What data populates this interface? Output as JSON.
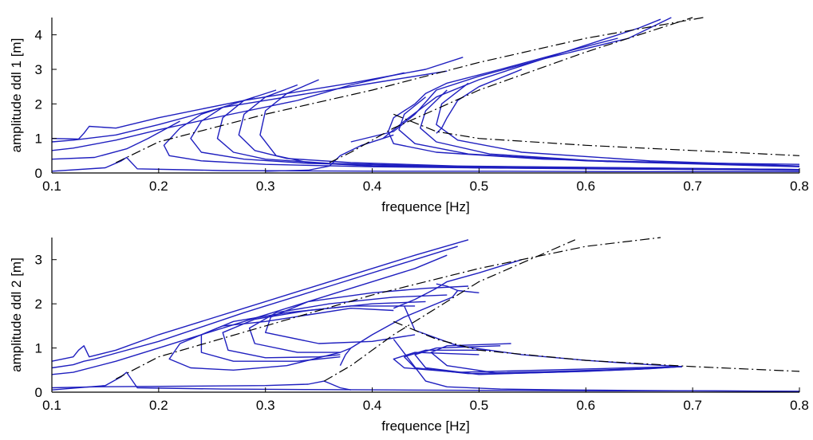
{
  "colors": {
    "curve": "#1f1fbf",
    "backbone": "#000000",
    "axis": "#000000",
    "background": "#ffffff"
  },
  "chart_data": [
    {
      "type": "line",
      "title": "",
      "xlabel": "frequence [Hz]",
      "ylabel": "amplitude ddl 1 [m]",
      "xlim": [
        0.1,
        0.8
      ],
      "ylim": [
        0,
        4.5
      ],
      "xticks": [
        "0.1",
        "0.2",
        "0.3",
        "0.4",
        "0.5",
        "0.6",
        "0.7",
        "0.8"
      ],
      "yticks": [
        "0",
        "1",
        "2",
        "3",
        "4"
      ],
      "grid": false,
      "legend": "none",
      "series": [
        {
          "style": "solid",
          "x": [
            0.1,
            0.125,
            0.13,
            0.135,
            0.16,
            0.2,
            0.28,
            0.38,
            0.45,
            0.485
          ],
          "y": [
            1.0,
            0.98,
            1.15,
            1.35,
            1.3,
            1.6,
            2.1,
            2.6,
            3.0,
            3.35
          ]
        },
        {
          "style": "solid",
          "x": [
            0.1,
            0.12,
            0.16,
            0.2,
            0.26,
            0.34,
            0.42,
            0.47
          ],
          "y": [
            0.9,
            0.95,
            1.1,
            1.4,
            1.9,
            2.3,
            2.7,
            2.95
          ]
        },
        {
          "style": "solid",
          "x": [
            0.1,
            0.12,
            0.16,
            0.2,
            0.26,
            0.33,
            0.38,
            0.43
          ],
          "y": [
            0.65,
            0.72,
            0.95,
            1.25,
            1.65,
            2.1,
            2.55,
            2.9
          ]
        },
        {
          "style": "solid",
          "x": [
            0.1,
            0.14,
            0.17,
            0.19,
            0.22
          ],
          "y": [
            0.4,
            0.45,
            0.7,
            1.0,
            1.5
          ]
        },
        {
          "style": "solid",
          "x": [
            0.1,
            0.15,
            0.165,
            0.17,
            0.18,
            0.26,
            0.34,
            0.42,
            0.52,
            0.62,
            0.72,
            0.8
          ],
          "y": [
            0.05,
            0.15,
            0.35,
            0.45,
            0.12,
            0.07,
            0.06,
            0.05,
            0.05,
            0.04,
            0.04,
            0.04
          ]
        },
        {
          "style": "solid",
          "x": [
            0.27,
            0.24,
            0.22,
            0.205,
            0.21,
            0.24,
            0.3,
            0.4,
            0.52,
            0.64,
            0.8
          ],
          "y": [
            2.0,
            1.7,
            1.3,
            0.8,
            0.5,
            0.35,
            0.25,
            0.18,
            0.14,
            0.11,
            0.09
          ]
        },
        {
          "style": "solid",
          "x": [
            0.29,
            0.26,
            0.24,
            0.23,
            0.24,
            0.28,
            0.34,
            0.44,
            0.56,
            0.8
          ],
          "y": [
            2.2,
            1.9,
            1.5,
            1.0,
            0.6,
            0.4,
            0.28,
            0.2,
            0.15,
            0.1
          ]
        },
        {
          "style": "solid",
          "x": [
            0.31,
            0.28,
            0.26,
            0.255,
            0.27,
            0.3,
            0.36,
            0.46,
            0.8
          ],
          "y": [
            2.4,
            2.1,
            1.6,
            1.0,
            0.6,
            0.4,
            0.28,
            0.2,
            0.1
          ]
        },
        {
          "style": "solid",
          "x": [
            0.33,
            0.3,
            0.28,
            0.275,
            0.29,
            0.32,
            0.38,
            0.48,
            0.8
          ],
          "y": [
            2.55,
            2.2,
            1.7,
            1.1,
            0.65,
            0.42,
            0.3,
            0.2,
            0.1
          ]
        },
        {
          "style": "solid",
          "x": [
            0.35,
            0.32,
            0.3,
            0.295,
            0.31,
            0.34,
            0.4,
            0.5,
            0.8
          ],
          "y": [
            2.7,
            2.3,
            1.8,
            1.1,
            0.5,
            0.3,
            0.2,
            0.15,
            0.08
          ]
        },
        {
          "style": "solid",
          "x": [
            0.3,
            0.34,
            0.36,
            0.37,
            0.39,
            0.41,
            0.42
          ],
          "y": [
            0.05,
            0.08,
            0.2,
            0.5,
            0.8,
            1.0,
            1.1
          ]
        },
        {
          "style": "solid",
          "x": [
            0.38,
            0.42,
            0.44,
            0.46,
            0.5,
            0.56,
            0.64,
            0.68
          ],
          "y": [
            0.9,
            1.2,
            1.7,
            2.4,
            2.8,
            3.3,
            3.9,
            4.5
          ]
        },
        {
          "style": "solid",
          "x": [
            0.41,
            0.43,
            0.46,
            0.5,
            0.55,
            0.6,
            0.65,
            0.67
          ],
          "y": [
            1.0,
            1.5,
            2.2,
            2.7,
            3.2,
            3.7,
            4.2,
            4.45
          ]
        },
        {
          "style": "solid",
          "x": [
            0.44,
            0.45,
            0.47,
            0.52,
            0.58,
            0.63
          ],
          "y": [
            2.0,
            2.3,
            2.6,
            3.0,
            3.5,
            3.9
          ]
        },
        {
          "style": "solid",
          "x": [
            0.44,
            0.42,
            0.415,
            0.42,
            0.46,
            0.56,
            0.68,
            0.8
          ],
          "y": [
            2.0,
            1.6,
            1.2,
            0.85,
            0.6,
            0.4,
            0.3,
            0.25
          ]
        },
        {
          "style": "solid",
          "x": [
            0.45,
            0.43,
            0.425,
            0.44,
            0.49,
            0.6,
            0.8
          ],
          "y": [
            2.2,
            1.7,
            1.25,
            0.85,
            0.55,
            0.35,
            0.2
          ]
        },
        {
          "style": "solid",
          "x": [
            0.47,
            0.45,
            0.445,
            0.46,
            0.51,
            0.62,
            0.8
          ],
          "y": [
            2.4,
            1.8,
            1.3,
            0.9,
            0.55,
            0.33,
            0.18
          ]
        },
        {
          "style": "solid",
          "x": [
            0.49,
            0.465,
            0.46,
            0.48,
            0.54,
            0.66,
            0.8
          ],
          "y": [
            2.6,
            2.0,
            1.4,
            0.95,
            0.6,
            0.35,
            0.2
          ]
        },
        {
          "style": "solid",
          "x": [
            0.54,
            0.5,
            0.48,
            0.47,
            0.465,
            0.46
          ],
          "y": [
            3.0,
            2.5,
            2.1,
            1.6,
            1.3,
            1.15
          ]
        },
        {
          "style": "dashdot",
          "x": [
            0.16,
            0.2,
            0.3,
            0.4,
            0.5,
            0.6,
            0.71
          ],
          "y": [
            0.3,
            0.9,
            1.7,
            2.4,
            3.2,
            3.9,
            4.5
          ]
        },
        {
          "style": "dashdot",
          "x": [
            0.36,
            0.38,
            0.42,
            0.5,
            0.6,
            0.7
          ],
          "y": [
            0.3,
            0.6,
            1.3,
            2.4,
            3.5,
            4.5
          ]
        },
        {
          "style": "dashdot",
          "x": [
            0.42,
            0.46,
            0.5,
            0.6,
            0.7,
            0.8
          ],
          "y": [
            1.7,
            1.2,
            1.0,
            0.8,
            0.65,
            0.5
          ]
        }
      ]
    },
    {
      "type": "line",
      "title": "",
      "xlabel": "frequence [Hz]",
      "ylabel": "amplitude ddl 2 [m]",
      "xlim": [
        0.1,
        0.8
      ],
      "ylim": [
        0,
        3.5
      ],
      "xticks": [
        "0.1",
        "0.2",
        "0.3",
        "0.4",
        "0.5",
        "0.6",
        "0.7",
        "0.8"
      ],
      "yticks": [
        "0",
        "1",
        "2",
        "3"
      ],
      "grid": false,
      "legend": "none",
      "series": [
        {
          "style": "solid",
          "x": [
            0.1,
            0.12,
            0.125,
            0.13,
            0.135,
            0.16,
            0.2,
            0.28,
            0.36,
            0.44,
            0.49
          ],
          "y": [
            0.7,
            0.8,
            0.95,
            1.05,
            0.8,
            0.95,
            1.3,
            1.9,
            2.5,
            3.1,
            3.45
          ]
        },
        {
          "style": "solid",
          "x": [
            0.1,
            0.12,
            0.13,
            0.14,
            0.2,
            0.28,
            0.36,
            0.44,
            0.48
          ],
          "y": [
            0.55,
            0.62,
            0.7,
            0.75,
            1.15,
            1.8,
            2.4,
            3.0,
            3.3
          ]
        },
        {
          "style": "solid",
          "x": [
            0.1,
            0.12,
            0.16,
            0.2,
            0.28,
            0.36,
            0.44,
            0.47
          ],
          "y": [
            0.4,
            0.45,
            0.7,
            1.0,
            1.6,
            2.2,
            2.8,
            3.1
          ]
        },
        {
          "style": "solid",
          "x": [
            0.1,
            0.15,
            0.165,
            0.17,
            0.18,
            0.26,
            0.34,
            0.42,
            0.52,
            0.62,
            0.72,
            0.8
          ],
          "y": [
            0.05,
            0.15,
            0.35,
            0.45,
            0.1,
            0.07,
            0.06,
            0.05,
            0.04,
            0.03,
            0.03,
            0.02
          ]
        },
        {
          "style": "solid",
          "x": [
            0.1,
            0.14,
            0.3,
            0.34,
            0.355,
            0.36,
            0.37,
            0.38
          ],
          "y": [
            0.1,
            0.12,
            0.15,
            0.18,
            0.25,
            0.2,
            0.1,
            0.05
          ]
        },
        {
          "style": "solid",
          "x": [
            0.42,
            0.38,
            0.34,
            0.3,
            0.26,
            0.22,
            0.21,
            0.23,
            0.27,
            0.32,
            0.37
          ],
          "y": [
            1.85,
            1.9,
            1.75,
            1.6,
            1.5,
            1.1,
            0.75,
            0.55,
            0.5,
            0.6,
            0.9
          ]
        },
        {
          "style": "solid",
          "x": [
            0.44,
            0.38,
            0.32,
            0.27,
            0.24,
            0.24,
            0.27,
            0.33,
            0.37
          ],
          "y": [
            1.95,
            1.95,
            1.8,
            1.6,
            1.3,
            0.9,
            0.7,
            0.7,
            0.8
          ]
        },
        {
          "style": "solid",
          "x": [
            0.45,
            0.4,
            0.34,
            0.29,
            0.26,
            0.265,
            0.3,
            0.35,
            0.37
          ],
          "y": [
            2.05,
            2.0,
            1.85,
            1.65,
            1.35,
            0.95,
            0.78,
            0.8,
            0.85
          ]
        },
        {
          "style": "solid",
          "x": [
            0.47,
            0.42,
            0.36,
            0.31,
            0.285,
            0.29,
            0.33,
            0.37,
            0.38
          ],
          "y": [
            2.2,
            2.15,
            2.0,
            1.8,
            1.45,
            1.1,
            0.9,
            0.9,
            1.0
          ]
        },
        {
          "style": "solid",
          "x": [
            0.49,
            0.45,
            0.4,
            0.34,
            0.305,
            0.3,
            0.35,
            0.4,
            0.44
          ],
          "y": [
            2.4,
            2.35,
            2.25,
            2.05,
            1.7,
            1.35,
            1.1,
            1.15,
            1.3
          ]
        },
        {
          "style": "solid",
          "x": [
            0.37,
            0.375,
            0.38,
            0.4,
            0.43,
            0.46,
            0.475,
            0.48
          ],
          "y": [
            0.6,
            0.85,
            1.0,
            1.3,
            1.7,
            2.0,
            2.15,
            2.3
          ]
        },
        {
          "style": "solid",
          "x": [
            0.42,
            0.44,
            0.46,
            0.47,
            0.5,
            0.54
          ],
          "y": [
            1.9,
            2.1,
            2.35,
            2.5,
            2.7,
            3.0
          ]
        },
        {
          "style": "solid",
          "x": [
            0.46,
            0.47,
            0.48,
            0.5
          ],
          "y": [
            2.45,
            2.4,
            2.3,
            2.25
          ]
        },
        {
          "style": "solid",
          "x": [
            0.5,
            0.44,
            0.42,
            0.43,
            0.48,
            0.56,
            0.64,
            0.69
          ],
          "y": [
            0.85,
            0.9,
            0.75,
            0.55,
            0.45,
            0.5,
            0.55,
            0.58
          ]
        },
        {
          "style": "solid",
          "x": [
            0.51,
            0.45,
            0.43,
            0.44,
            0.49,
            0.57,
            0.65,
            0.69
          ],
          "y": [
            0.95,
            0.95,
            0.8,
            0.55,
            0.42,
            0.47,
            0.53,
            0.58
          ]
        },
        {
          "style": "solid",
          "x": [
            0.52,
            0.46,
            0.44,
            0.45,
            0.5,
            0.58,
            0.65,
            0.69
          ],
          "y": [
            1.05,
            1.0,
            0.85,
            0.55,
            0.4,
            0.46,
            0.52,
            0.58
          ]
        },
        {
          "style": "solid",
          "x": [
            0.53,
            0.47,
            0.455,
            0.47,
            0.52,
            0.6,
            0.66,
            0.69
          ],
          "y": [
            1.1,
            1.05,
            0.9,
            0.6,
            0.42,
            0.47,
            0.53,
            0.58
          ]
        },
        {
          "style": "solid",
          "x": [
            0.43,
            0.44,
            0.48,
            0.54,
            0.6,
            0.66,
            0.69
          ],
          "y": [
            1.95,
            1.4,
            1.05,
            0.85,
            0.72,
            0.62,
            0.58
          ]
        },
        {
          "style": "solid",
          "x": [
            0.42,
            0.45,
            0.47,
            0.52,
            0.58,
            0.64,
            0.7,
            0.8
          ],
          "y": [
            1.2,
            0.25,
            0.12,
            0.07,
            0.05,
            0.04,
            0.03,
            0.02
          ]
        },
        {
          "style": "dashdot",
          "x": [
            0.16,
            0.2,
            0.3,
            0.4,
            0.5,
            0.6,
            0.67
          ],
          "y": [
            0.3,
            0.8,
            1.5,
            2.2,
            2.8,
            3.3,
            3.5
          ]
        },
        {
          "style": "dashdot",
          "x": [
            0.355,
            0.38,
            0.42,
            0.5,
            0.59
          ],
          "y": [
            0.25,
            0.6,
            1.3,
            2.5,
            3.45
          ]
        },
        {
          "style": "dashdot",
          "x": [
            0.42,
            0.46,
            0.5,
            0.6,
            0.7,
            0.8
          ],
          "y": [
            1.6,
            1.2,
            0.95,
            0.72,
            0.58,
            0.47
          ]
        }
      ]
    }
  ]
}
